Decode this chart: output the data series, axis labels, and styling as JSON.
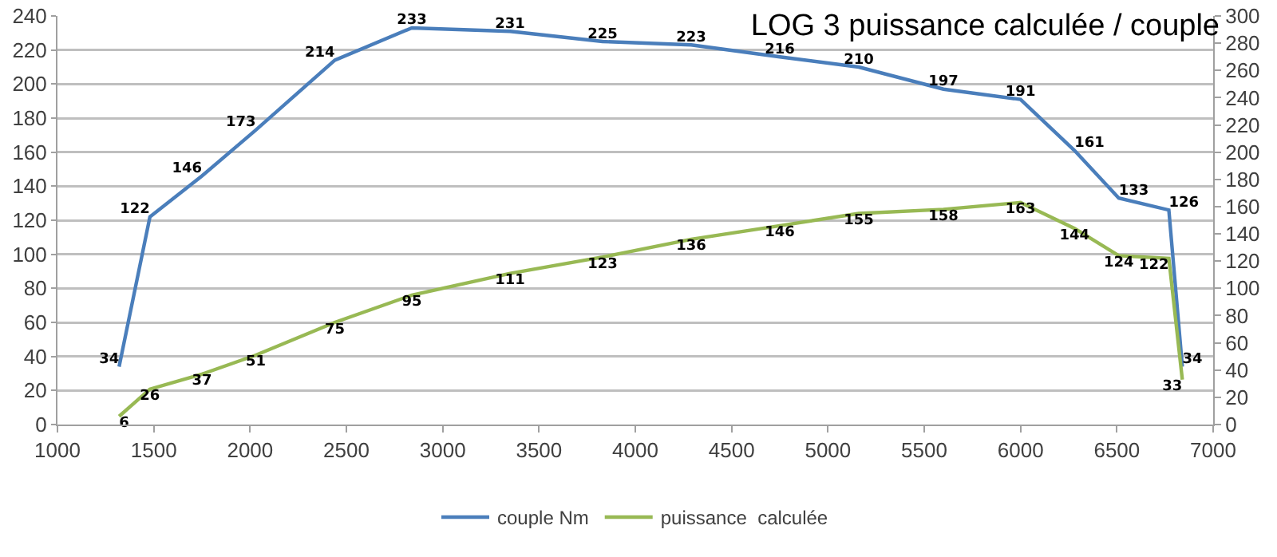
{
  "chart_data": {
    "type": "line",
    "title": "LOG 3 puissance calculée / couple",
    "x": [
      1320,
      1480,
      1750,
      2030,
      2440,
      2840,
      3350,
      3830,
      4290,
      4750,
      5160,
      5600,
      6000,
      6280,
      6510,
      6770,
      6840
    ],
    "series": [
      {
        "name": "couple Nm",
        "color": "#4a7ebb",
        "values": [
          34,
          122,
          146,
          173,
          214,
          233,
          231,
          225,
          223,
          216,
          210,
          197,
          191,
          161,
          133,
          126,
          34
        ]
      },
      {
        "name": "puissance  calculée",
        "color": "#98b954",
        "axis": "y2",
        "values": [
          6,
          26,
          37,
          51,
          75,
          95,
          111,
          123,
          136,
          146,
          155,
          158,
          163,
          144,
          124,
          122,
          33
        ]
      }
    ],
    "xlim": [
      1000,
      7000
    ],
    "xticks": [
      1000,
      1500,
      2000,
      2500,
      3000,
      3500,
      4000,
      4500,
      5000,
      5500,
      6000,
      6500,
      7000
    ],
    "ylim": [
      0,
      240
    ],
    "yticks": [
      0,
      20,
      40,
      60,
      80,
      100,
      120,
      140,
      160,
      180,
      200,
      220,
      240
    ],
    "y2lim": [
      0,
      300
    ],
    "y2ticks": [
      0,
      20,
      40,
      60,
      80,
      100,
      120,
      140,
      160,
      180,
      200,
      220,
      240,
      260,
      280,
      300
    ],
    "data_labels": true,
    "grid": "y",
    "legend": "bottom",
    "marker": "none",
    "line_style": "solid"
  }
}
